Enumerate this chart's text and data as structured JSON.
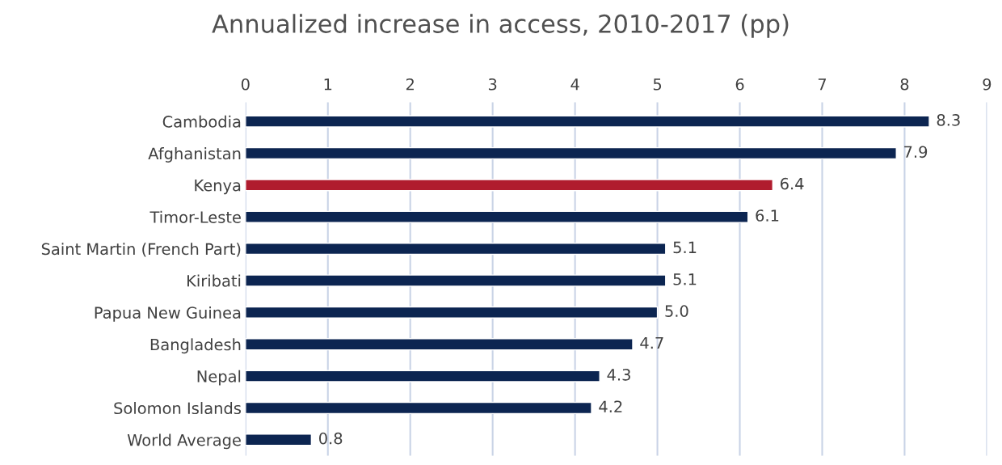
{
  "chart_data": {
    "type": "bar",
    "orientation": "horizontal",
    "title": "Annualized increase in access, 2010-2017 (pp)",
    "categories": [
      "Cambodia",
      "Afghanistan",
      "Kenya",
      "Timor-Leste",
      "Saint Martin (French Part)",
      "Kiribati",
      "Papua New Guinea",
      "Bangladesh",
      "Nepal",
      "Solomon Islands",
      "World Average"
    ],
    "values": [
      8.3,
      7.9,
      6.4,
      6.1,
      5.1,
      5.1,
      5.0,
      4.7,
      4.3,
      4.2,
      0.8
    ],
    "value_labels": [
      "8.3",
      "7.9",
      "6.4",
      "6.1",
      "5.1",
      "5.1",
      "5.0",
      "4.7",
      "4.3",
      "4.2",
      "0.8"
    ],
    "colors": [
      "#0c2551",
      "#0c2551",
      "#b01c2e",
      "#0c2551",
      "#0c2551",
      "#0c2551",
      "#0c2551",
      "#0c2551",
      "#0c2551",
      "#0c2551",
      "#0c2551"
    ],
    "xlim": [
      0,
      9
    ],
    "xticks": [
      0,
      1,
      2,
      3,
      4,
      5,
      6,
      7,
      8,
      9
    ],
    "grid": "x"
  }
}
